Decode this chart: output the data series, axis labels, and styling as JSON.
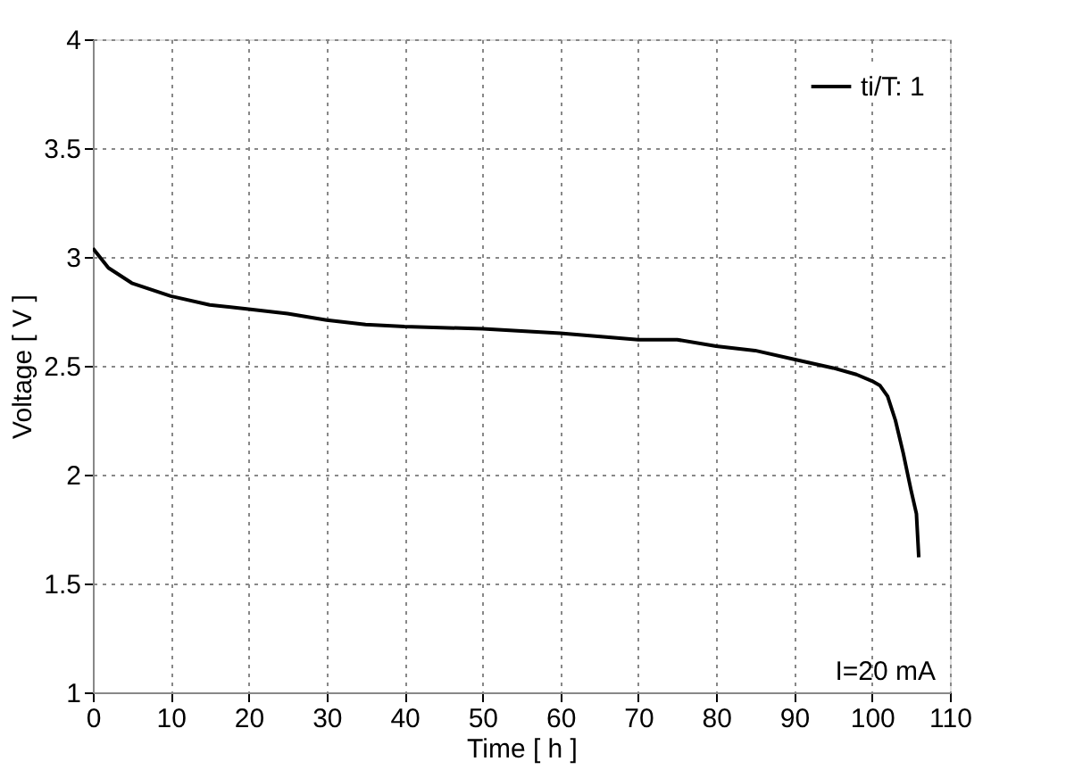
{
  "chart_data": {
    "type": "line",
    "xlabel": "Time [ h ]",
    "ylabel": "Voltage [ V ]",
    "xlim": [
      0,
      110
    ],
    "xticks": [
      0,
      10,
      20,
      30,
      40,
      50,
      60,
      70,
      80,
      90,
      100,
      110
    ],
    "line_style": "solid",
    "ylim": [
      1,
      4
    ],
    "yticks": [
      1,
      1.5,
      2,
      2.5,
      3,
      3.5,
      4
    ],
    "grid": true,
    "legend": "top right",
    "annotations": [
      "I=20 mA"
    ],
    "series": [
      {
        "name": "ti/T: 1",
        "color": "#000000",
        "x": [
          0,
          2,
          5,
          10,
          15,
          20,
          25,
          30,
          35,
          40,
          50,
          60,
          70,
          75,
          80,
          85,
          90,
          95,
          98,
          100,
          101,
          102,
          103,
          104,
          105,
          105.7,
          106
        ],
        "values": [
          3.04,
          2.95,
          2.88,
          2.82,
          2.78,
          2.76,
          2.74,
          2.71,
          2.69,
          2.68,
          2.67,
          2.65,
          2.62,
          2.62,
          2.59,
          2.57,
          2.53,
          2.49,
          2.46,
          2.43,
          2.41,
          2.36,
          2.25,
          2.1,
          1.93,
          1.82,
          1.62
        ]
      }
    ]
  }
}
